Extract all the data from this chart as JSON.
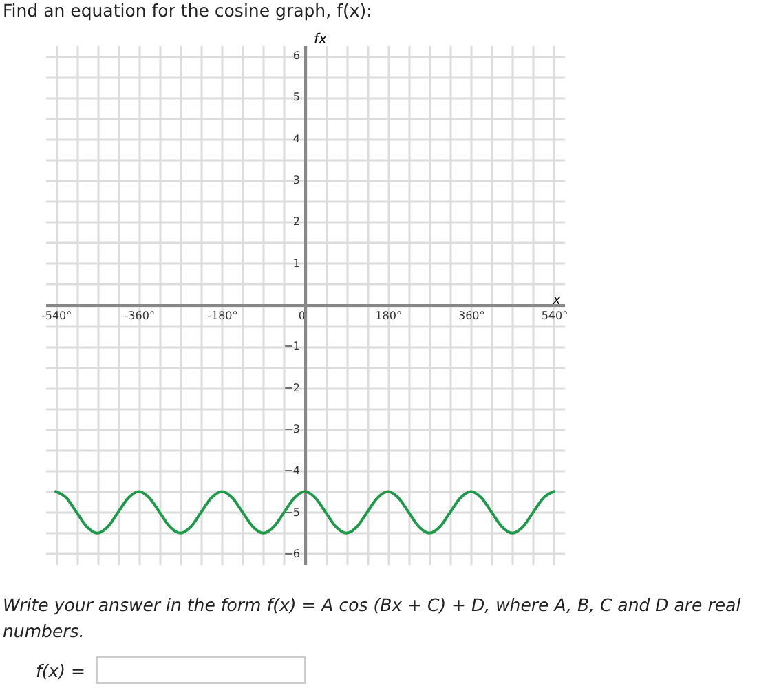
{
  "chart_data": {
    "type": "line",
    "title": "Find an equation for the cosine graph, f(x):",
    "xlabel": "x",
    "ylabel": "fx",
    "x": [
      -540,
      -517.5,
      -495,
      -472.5,
      -450,
      -427.5,
      -405,
      -382.5,
      -360,
      -337.5,
      -315,
      -292.5,
      -270,
      -247.5,
      -225,
      -202.5,
      -180,
      -157.5,
      -135,
      -112.5,
      -90,
      -67.5,
      -45,
      -22.5,
      0,
      22.5,
      45,
      67.5,
      90,
      112.5,
      135,
      157.5,
      180,
      202.5,
      225,
      247.5,
      270,
      292.5,
      315,
      337.5,
      360,
      382.5,
      405,
      427.5,
      450,
      472.5,
      495,
      517.5,
      540
    ],
    "series": [
      {
        "color": "#1e9a4a",
        "values": [
          -4.5,
          -4.65,
          -5,
          -5.35,
          -5.5,
          -5.35,
          -5,
          -4.65,
          -4.5,
          -4.65,
          -5,
          -5.35,
          -5.5,
          -5.35,
          -5,
          -4.65,
          -4.5,
          -4.65,
          -5,
          -5.35,
          -5.5,
          -5.35,
          -5,
          -4.65,
          -4.5,
          -4.65,
          -5,
          -5.35,
          -5.5,
          -5.35,
          -5,
          -4.65,
          -4.5,
          -4.65,
          -5,
          -5.35,
          -5.5,
          -5.35,
          -5,
          -4.65,
          -4.5,
          -4.65,
          -5,
          -5.35,
          -5.5,
          -5.35,
          -5,
          -4.65,
          -4.5
        ]
      }
    ],
    "xlim": [
      -562.5,
      562.5
    ],
    "ylim": [
      -6.25,
      6.25
    ],
    "xticks": [
      {
        "value": -540,
        "label": "-540°"
      },
      {
        "value": -495,
        "label": null
      },
      {
        "value": -450,
        "label": null
      },
      {
        "value": -405,
        "label": null
      },
      {
        "value": -360,
        "label": "-360°"
      },
      {
        "value": -315,
        "label": null
      },
      {
        "value": -270,
        "label": null
      },
      {
        "value": -225,
        "label": null
      },
      {
        "value": -180,
        "label": "-180°"
      },
      {
        "value": -135,
        "label": null
      },
      {
        "value": -90,
        "label": null
      },
      {
        "value": -45,
        "label": null
      },
      {
        "value": 0,
        "label": "0"
      },
      {
        "value": 45,
        "label": null
      },
      {
        "value": 90,
        "label": null
      },
      {
        "value": 135,
        "label": null
      },
      {
        "value": 180,
        "label": "180°"
      },
      {
        "value": 225,
        "label": null
      },
      {
        "value": 270,
        "label": null
      },
      {
        "value": 315,
        "label": null
      },
      {
        "value": 360,
        "label": "360°"
      },
      {
        "value": 405,
        "label": null
      },
      {
        "value": 450,
        "label": null
      },
      {
        "value": 495,
        "label": null
      },
      {
        "value": 540,
        "label": "540°"
      }
    ],
    "yticks": [
      -6,
      {
        "value": -5.5,
        "label": null
      },
      -5,
      {
        "value": -4.5,
        "label": null
      },
      -4,
      {
        "value": -3.5,
        "label": null
      },
      -3,
      {
        "value": -2.5,
        "label": null
      },
      -2,
      {
        "value": -1.5,
        "label": null
      },
      -1,
      {
        "value": -0.5,
        "label": null
      },
      {
        "value": 0,
        "label": null
      },
      {
        "value": 0.5,
        "label": null
      },
      1,
      {
        "value": 1.5,
        "label": null
      },
      2,
      {
        "value": 2.5,
        "label": null
      },
      3,
      {
        "value": 3.5,
        "label": null
      },
      4,
      {
        "value": 4.5,
        "label": null
      },
      5,
      {
        "value": 5.5,
        "label": null
      },
      6
    ],
    "grid": true,
    "marker": "none",
    "line_style": "solid",
    "annotations": [
      "Write your answer in the form f(x) = A cos (Bx + C) + D, where A, B, C and D are real numbers.",
      "f(x) ="
    ]
  }
}
